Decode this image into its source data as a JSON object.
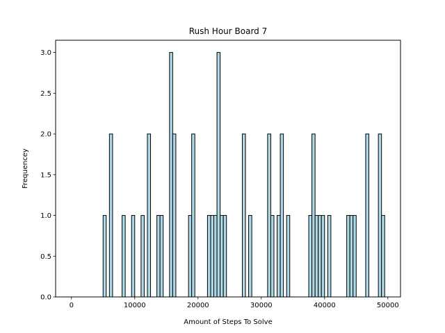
{
  "chart_data": {
    "type": "bar",
    "title": "Rush Hour Board 7",
    "xlabel": "Amount of Steps To Solve",
    "ylabel": "Frequencey",
    "xlim": [
      -2500,
      52000
    ],
    "ylim": [
      0,
      3.15
    ],
    "bin_width": 500,
    "bar_color": "#add8e6",
    "edge_color": "#000000",
    "xticks": [
      0,
      10000,
      20000,
      30000,
      40000,
      50000
    ],
    "xtick_labels": [
      "0",
      "10000",
      "20000",
      "30000",
      "40000",
      "50000"
    ],
    "yticks": [
      0.0,
      0.5,
      1.0,
      1.5,
      2.0,
      2.5,
      3.0
    ],
    "ytick_labels": [
      "0.0",
      "0.5",
      "1.0",
      "1.5",
      "2.0",
      "2.5",
      "3.0"
    ],
    "bins": [
      {
        "x": 5000,
        "value": 1
      },
      {
        "x": 6000,
        "value": 2
      },
      {
        "x": 8000,
        "value": 1
      },
      {
        "x": 9500,
        "value": 1
      },
      {
        "x": 11000,
        "value": 1
      },
      {
        "x": 12000,
        "value": 2
      },
      {
        "x": 13500,
        "value": 1
      },
      {
        "x": 14000,
        "value": 1
      },
      {
        "x": 15500,
        "value": 3
      },
      {
        "x": 16000,
        "value": 2
      },
      {
        "x": 18500,
        "value": 1
      },
      {
        "x": 19000,
        "value": 2
      },
      {
        "x": 21500,
        "value": 1
      },
      {
        "x": 22000,
        "value": 1
      },
      {
        "x": 22500,
        "value": 1
      },
      {
        "x": 23000,
        "value": 3
      },
      {
        "x": 23500,
        "value": 1
      },
      {
        "x": 24000,
        "value": 1
      },
      {
        "x": 27000,
        "value": 2
      },
      {
        "x": 28000,
        "value": 1
      },
      {
        "x": 31000,
        "value": 2
      },
      {
        "x": 31500,
        "value": 1
      },
      {
        "x": 32500,
        "value": 1
      },
      {
        "x": 33000,
        "value": 2
      },
      {
        "x": 34000,
        "value": 1
      },
      {
        "x": 37500,
        "value": 1
      },
      {
        "x": 38000,
        "value": 2
      },
      {
        "x": 38500,
        "value": 1
      },
      {
        "x": 39000,
        "value": 1
      },
      {
        "x": 39500,
        "value": 1
      },
      {
        "x": 40500,
        "value": 1
      },
      {
        "x": 43500,
        "value": 1
      },
      {
        "x": 44000,
        "value": 1
      },
      {
        "x": 44500,
        "value": 1
      },
      {
        "x": 46500,
        "value": 2
      },
      {
        "x": 48500,
        "value": 2
      },
      {
        "x": 49000,
        "value": 1
      }
    ]
  }
}
